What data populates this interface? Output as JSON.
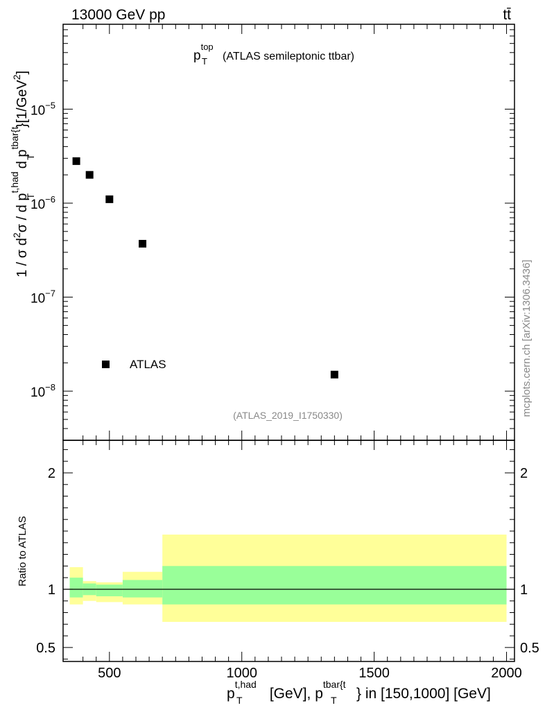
{
  "header": {
    "left": "13000 GeV pp",
    "right": "tt̄"
  },
  "side_label": "mcplots.cern.ch [arXiv:1306.3436]",
  "chart_data": [
    {
      "type": "scatter",
      "title_main": "p",
      "title_sub": "T",
      "title_sup": "top",
      "title_rest": "(ATLAS semileptonic ttbar)",
      "ylabel": "1 / σ d²σ / d pᵀ^{t,had} d pᵀ^{tbar{t}} [1/GeV²]",
      "ylabel_parts": {
        "a": "1 / σ d",
        "b": "2",
        "c": "σ / d p",
        "d": "t,had",
        "e": "T",
        "f": " d p",
        "g": "tbar{t",
        "h": "T",
        "i": "}[1/GeV",
        "j": "2",
        "k": "]"
      },
      "yscale": "log",
      "ylim": [
        3e-09,
        8e-05
      ],
      "xlim": [
        325,
        2030
      ],
      "yticks_major": [
        {
          "value": 1e-08,
          "base": "10",
          "exp": "−8"
        },
        {
          "value": 1e-07,
          "base": "10",
          "exp": "−7"
        },
        {
          "value": 1e-06,
          "base": "10",
          "exp": "−6"
        },
        {
          "value": 1e-05,
          "base": "10",
          "exp": "−5"
        }
      ],
      "series": [
        {
          "name": "ATLAS",
          "marker": "square",
          "color": "#000000",
          "x": [
            375,
            425,
            500,
            625,
            1350
          ],
          "y": [
            2.8e-06,
            2e-06,
            1.1e-06,
            3.7e-07,
            1.5e-08
          ]
        }
      ],
      "legend": {
        "position": "bottom-left",
        "entries": [
          "ATLAS"
        ]
      },
      "annotation": "(ATLAS_2019_I1750330)"
    },
    {
      "type": "area",
      "ylabel": "Ratio to ATLAS",
      "xlim": [
        325,
        2030
      ],
      "ylim": [
        0.38,
        2.28
      ],
      "yticks": [
        0.5,
        1,
        2
      ],
      "yticks_labels": [
        "0.5",
        "1",
        "2"
      ],
      "xticks": [
        500,
        1000,
        1500,
        2000
      ],
      "xticks_labels": [
        "500",
        "1000",
        "1500",
        "2000"
      ],
      "reference_line": 1,
      "bins": [
        {
          "lo": 350,
          "hi": 400,
          "yellow": [
            0.87,
            1.19
          ],
          "green": [
            0.93,
            1.1
          ]
        },
        {
          "lo": 400,
          "hi": 450,
          "yellow": [
            0.9,
            1.07
          ],
          "green": [
            0.95,
            1.05
          ]
        },
        {
          "lo": 450,
          "hi": 550,
          "yellow": [
            0.89,
            1.06
          ],
          "green": [
            0.94,
            1.04
          ]
        },
        {
          "lo": 550,
          "hi": 700,
          "yellow": [
            0.87,
            1.15
          ],
          "green": [
            0.93,
            1.08
          ]
        },
        {
          "lo": 700,
          "hi": 2000,
          "yellow": [
            0.72,
            1.47
          ],
          "green": [
            0.87,
            1.2
          ]
        }
      ],
      "colors": {
        "yellow": "#ffff99",
        "green": "#99ff99"
      },
      "xlabel_parts": {
        "a": "p",
        "b": "t,had",
        "c": "T",
        "d": " [GeV], p",
        "e": "tbar{t",
        "f": "T",
        "g": "} in [150,1000] [GeV]"
      }
    }
  ]
}
